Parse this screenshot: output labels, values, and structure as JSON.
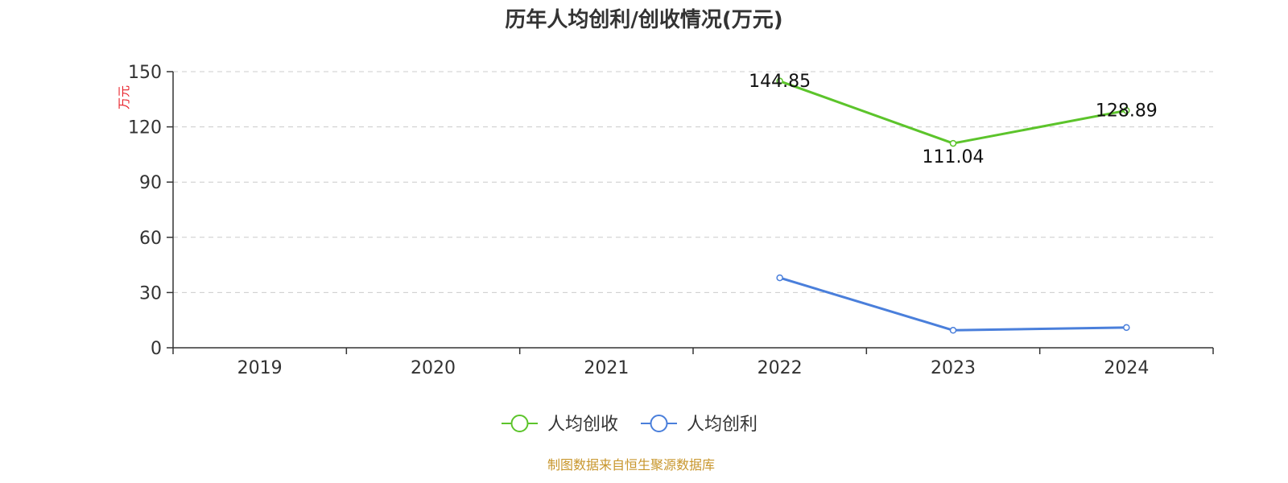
{
  "chart_data": {
    "type": "line",
    "title": "历年人均创利/创收情况(万元)",
    "ylabel": "万元",
    "xlabel": "",
    "categories": [
      "2019",
      "2020",
      "2021",
      "2022",
      "2023",
      "2024"
    ],
    "ylim": [
      0,
      150
    ],
    "yticks": [
      0,
      30,
      60,
      90,
      120,
      150
    ],
    "grid": true,
    "legend_position": "bottom",
    "series": [
      {
        "name": "人均创收",
        "color": "#5cc42b",
        "values": [
          null,
          null,
          null,
          144.85,
          111.04,
          128.89
        ],
        "labels": [
          "",
          "",
          "",
          "144.85",
          "111.04",
          "128.89"
        ]
      },
      {
        "name": "人均创利",
        "color": "#4a7fdb",
        "values": [
          null,
          null,
          null,
          38.0,
          9.5,
          11.0
        ],
        "labels": [
          "",
          "",
          "",
          "",
          "",
          ""
        ]
      }
    ]
  },
  "source_note": "制图数据来自恒生聚源数据库"
}
